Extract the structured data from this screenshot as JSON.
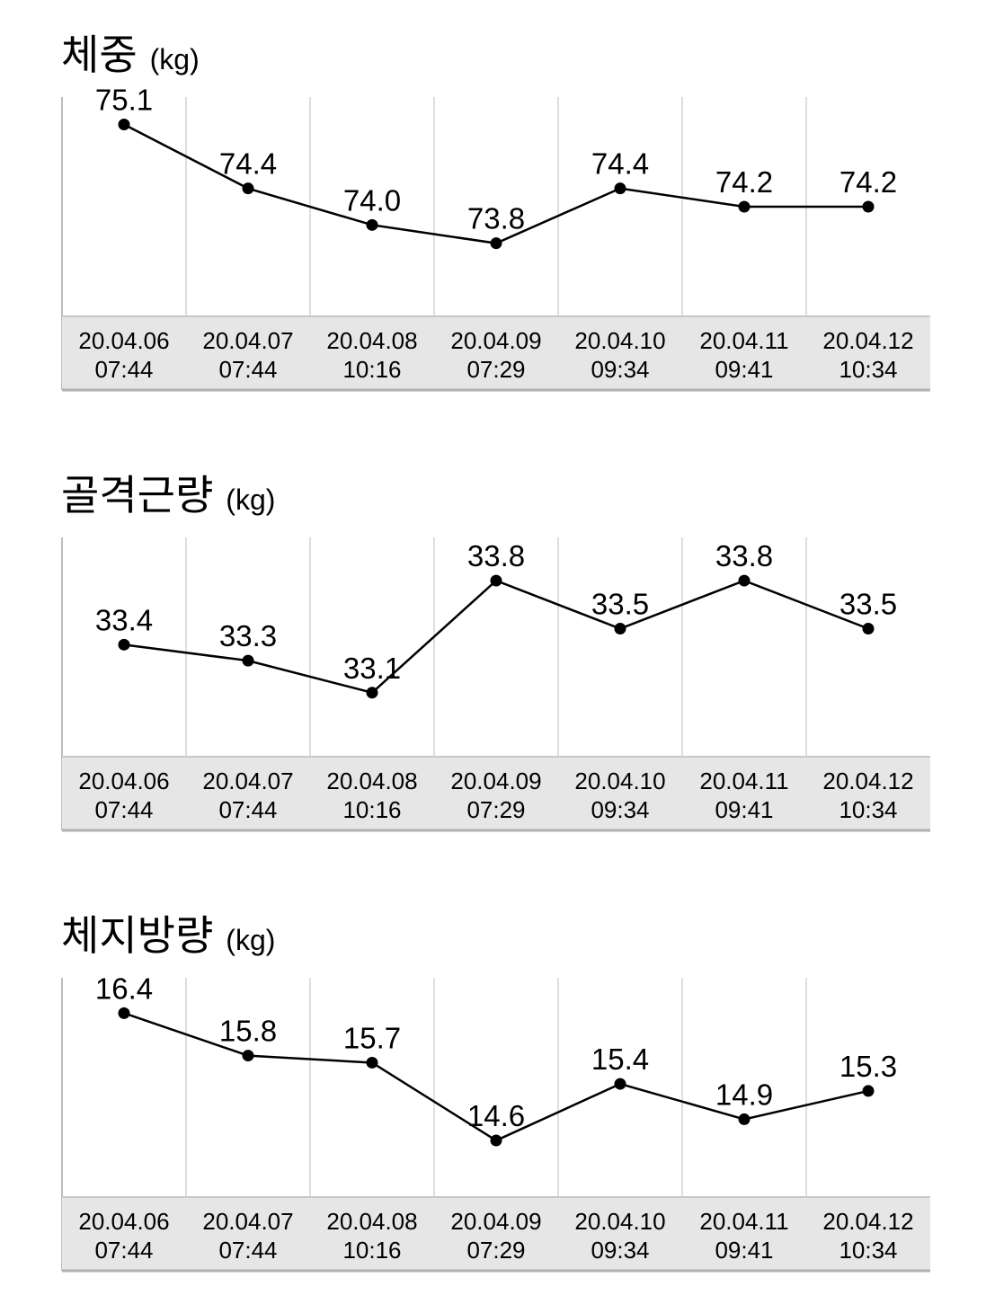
{
  "charts": [
    {
      "title": "체중",
      "unit": "(kg)"
    },
    {
      "title": "골격근량",
      "unit": "(kg)"
    },
    {
      "title": "체지방량",
      "unit": "(kg)"
    }
  ],
  "chart_data": [
    {
      "type": "line",
      "title": "체중 (kg)",
      "categories": [
        [
          "20.04.06",
          "07:44"
        ],
        [
          "20.04.07",
          "07:44"
        ],
        [
          "20.04.08",
          "10:16"
        ],
        [
          "20.04.09",
          "07:29"
        ],
        [
          "20.04.10",
          "09:34"
        ],
        [
          "20.04.11",
          "09:41"
        ],
        [
          "20.04.12",
          "10:34"
        ]
      ],
      "values": [
        75.1,
        74.4,
        74.0,
        73.8,
        74.4,
        74.2,
        74.2
      ],
      "value_labels": [
        "75.1",
        "74.4",
        "74.0",
        "73.8",
        "74.4",
        "74.2",
        "74.2"
      ],
      "ylim": [
        73.0,
        75.4
      ],
      "grid": "vertical",
      "line_color": "#000000",
      "axis_band_color": "#e6e6e6"
    },
    {
      "type": "line",
      "title": "골격근량 (kg)",
      "categories": [
        [
          "20.04.06",
          "07:44"
        ],
        [
          "20.04.07",
          "07:44"
        ],
        [
          "20.04.08",
          "10:16"
        ],
        [
          "20.04.09",
          "07:29"
        ],
        [
          "20.04.10",
          "09:34"
        ],
        [
          "20.04.11",
          "09:41"
        ],
        [
          "20.04.12",
          "10:34"
        ]
      ],
      "values": [
        33.4,
        33.3,
        33.1,
        33.8,
        33.5,
        33.8,
        33.5
      ],
      "value_labels": [
        "33.4",
        "33.3",
        "33.1",
        "33.8",
        "33.5",
        "33.8",
        "33.5"
      ],
      "ylim": [
        32.7,
        34.07
      ],
      "grid": "vertical",
      "line_color": "#000000",
      "axis_band_color": "#e6e6e6"
    },
    {
      "type": "line",
      "title": "체지방량 (kg)",
      "categories": [
        [
          "20.04.06",
          "07:44"
        ],
        [
          "20.04.07",
          "07:44"
        ],
        [
          "20.04.08",
          "10:16"
        ],
        [
          "20.04.09",
          "07:29"
        ],
        [
          "20.04.10",
          "09:34"
        ],
        [
          "20.04.11",
          "09:41"
        ],
        [
          "20.04.12",
          "10:34"
        ]
      ],
      "values": [
        16.4,
        15.8,
        15.7,
        14.6,
        15.4,
        14.9,
        15.3
      ],
      "value_labels": [
        "16.4",
        "15.8",
        "15.7",
        "14.6",
        "15.4",
        "14.9",
        "15.3"
      ],
      "ylim": [
        13.8,
        16.9
      ],
      "grid": "vertical",
      "line_color": "#000000",
      "axis_band_color": "#e6e6e6"
    }
  ]
}
